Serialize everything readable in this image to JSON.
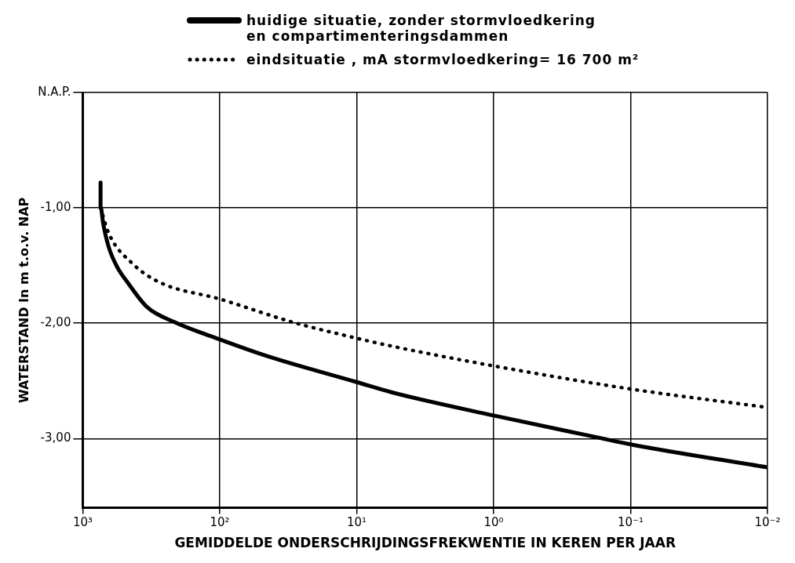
{
  "chart_data": {
    "type": "line",
    "xlabel": "GEMIDDELDE ONDERSCHRIJDINGSFREKWENTIE IN KEREN PER JAAR",
    "ylabel": "WATERSTAND In m t.o.v. NAP",
    "log": "x",
    "grid": true,
    "legend": "top",
    "marker": "none",
    "xlim": [
      1000,
      0.01
    ],
    "xticks": [
      {
        "value": 1000,
        "label": "10³"
      },
      {
        "value": 100,
        "label": "10²"
      },
      {
        "value": 10,
        "label": "10¹"
      },
      {
        "value": 1,
        "label": "10⁰"
      },
      {
        "value": 0.1,
        "label": "10⁻¹"
      },
      {
        "value": 0.01,
        "label": "10⁻²"
      }
    ],
    "ylim": [
      -3.6,
      0
    ],
    "yticks": [
      {
        "value": 0,
        "label": "N.A.P."
      },
      {
        "value": -1,
        "label": "-1,00"
      },
      {
        "value": -2,
        "label": "-2,00"
      },
      {
        "value": -3,
        "label": "-3,00"
      }
    ],
    "series": [
      {
        "name": "huidige situatie, zonder stormvloedkering\nen compartimenteringsdammen",
        "color": "#000000",
        "line_style": "solid",
        "x": [
          741,
          741,
          708,
          646,
          562,
          468,
          339,
          214,
          100,
          43.6,
          10,
          5.5,
          1,
          0.174,
          0.1,
          0.01
        ],
        "values": [
          -0.78,
          -0.99,
          -1.14,
          -1.34,
          -1.51,
          -1.65,
          -1.86,
          -1.99,
          -2.14,
          -2.29,
          -2.51,
          -2.6,
          -2.8,
          -2.99,
          -3.05,
          -3.25
        ]
      },
      {
        "name": "eindsituatie , mA stormvloedkering= 16 700 m²",
        "color": "#000000",
        "line_style": "dotted",
        "x": [
          741,
          646,
          427,
          269,
          100,
          29.5,
          10,
          6.0,
          1,
          0.1,
          0.01
        ],
        "values": [
          -1.0,
          -1.22,
          -1.49,
          -1.65,
          -1.79,
          -1.99,
          -2.13,
          -2.19,
          -2.37,
          -2.57,
          -2.73
        ]
      }
    ]
  }
}
